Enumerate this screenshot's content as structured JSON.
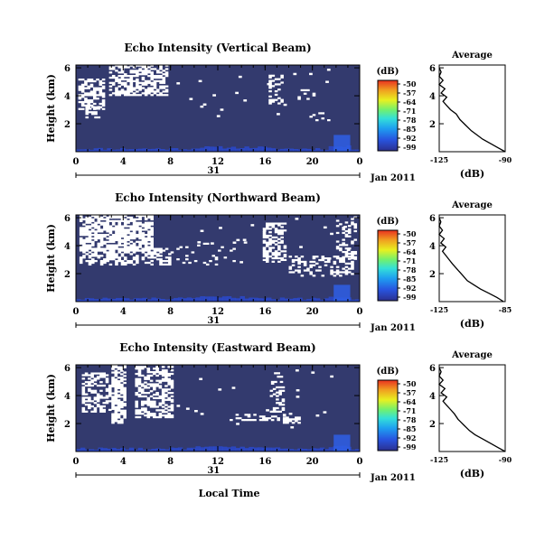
{
  "chart_data": [
    {
      "type": "heatmap",
      "title": "Echo Intensity (Vertical Beam)",
      "ylabel": "Height (km)",
      "x_ticks": [
        "0",
        "4",
        "8",
        "12",
        "16",
        "20",
        "0"
      ],
      "y_ticks": [
        "6",
        "4",
        "2"
      ],
      "date_day": "31",
      "date_label": "Jan 2011",
      "colorbar": {
        "unit": "(dB)",
        "ticks": [
          "-50",
          "-57",
          "-64",
          "-71",
          "-78",
          "-85",
          "-92",
          "-99"
        ]
      },
      "average": {
        "title": "Average",
        "xlabel": "(dB)",
        "x_ticks": [
          "-125",
          "-90"
        ],
        "y_ticks": [
          "6",
          "4",
          "2"
        ],
        "profile": [
          [
            -90,
            0
          ],
          [
            -94,
            0.3
          ],
          [
            -98,
            0.6
          ],
          [
            -102,
            0.9
          ],
          [
            -105,
            1.2
          ],
          [
            -108,
            1.5
          ],
          [
            -111,
            1.9
          ],
          [
            -114,
            2.3
          ],
          [
            -116,
            2.7
          ],
          [
            -119,
            3.0
          ],
          [
            -121,
            3.3
          ],
          [
            -123,
            3.6
          ],
          [
            -121,
            3.9
          ],
          [
            -124,
            4.2
          ],
          [
            -122,
            4.5
          ],
          [
            -125,
            4.8
          ],
          [
            -123,
            5.1
          ],
          [
            -125,
            5.4
          ],
          [
            -124,
            5.7
          ],
          [
            -125,
            6.0
          ]
        ]
      }
    },
    {
      "type": "heatmap",
      "title": "Echo Intensity (Northward Beam)",
      "ylabel": "Height (km)",
      "x_ticks": [
        "0",
        "4",
        "8",
        "12",
        "16",
        "20",
        "0"
      ],
      "y_ticks": [
        "6",
        "4",
        "2"
      ],
      "date_day": "31",
      "date_label": "Jan 2011",
      "colorbar": {
        "unit": "(dB)",
        "ticks": [
          "-50",
          "-57",
          "-64",
          "-71",
          "-78",
          "-85",
          "-92",
          "-99"
        ]
      },
      "average": {
        "title": "Average",
        "xlabel": "(dB)",
        "x_ticks": [
          "-125",
          "-85"
        ],
        "y_ticks": [
          "6",
          "4",
          "2"
        ],
        "profile": [
          [
            -86,
            0
          ],
          [
            -90,
            0.3
          ],
          [
            -95,
            0.6
          ],
          [
            -100,
            0.9
          ],
          [
            -104,
            1.2
          ],
          [
            -108,
            1.5
          ],
          [
            -111,
            1.9
          ],
          [
            -114,
            2.3
          ],
          [
            -117,
            2.7
          ],
          [
            -119,
            3.0
          ],
          [
            -121,
            3.3
          ],
          [
            -123,
            3.6
          ],
          [
            -121,
            3.9
          ],
          [
            -124,
            4.2
          ],
          [
            -122,
            4.5
          ],
          [
            -125,
            4.8
          ],
          [
            -123,
            5.1
          ],
          [
            -125,
            5.4
          ],
          [
            -124,
            5.7
          ],
          [
            -125,
            6.0
          ]
        ]
      }
    },
    {
      "type": "heatmap",
      "title": "Echo Intensity (Eastward Beam)",
      "ylabel": "Height (km)",
      "xlabel": "Local Time",
      "x_ticks": [
        "0",
        "4",
        "8",
        "12",
        "16",
        "20",
        "0"
      ],
      "y_ticks": [
        "6",
        "4",
        "2"
      ],
      "date_day": "31",
      "date_label": "Jan 2011",
      "colorbar": {
        "unit": "(dB)",
        "ticks": [
          "-50",
          "-57",
          "-64",
          "-71",
          "-78",
          "-85",
          "-92",
          "-99"
        ]
      },
      "average": {
        "title": "Average",
        "xlabel": "(dB)",
        "x_ticks": [
          "-125",
          "-90"
        ],
        "y_ticks": [
          "6",
          "4",
          "2"
        ],
        "profile": [
          [
            -90,
            0
          ],
          [
            -94,
            0.3
          ],
          [
            -98,
            0.6
          ],
          [
            -102,
            0.9
          ],
          [
            -106,
            1.2
          ],
          [
            -109,
            1.5
          ],
          [
            -112,
            1.9
          ],
          [
            -115,
            2.3
          ],
          [
            -117,
            2.7
          ],
          [
            -119,
            3.0
          ],
          [
            -121,
            3.3
          ],
          [
            -123,
            3.6
          ],
          [
            -121,
            3.9
          ],
          [
            -124,
            4.2
          ],
          [
            -122,
            4.5
          ],
          [
            -125,
            4.8
          ],
          [
            -123,
            5.1
          ],
          [
            -125,
            5.4
          ],
          [
            -124,
            5.7
          ],
          [
            -125,
            6.0
          ]
        ]
      }
    }
  ],
  "colors": {
    "background": "#333a6e",
    "bottom_band": "#2a4bd8",
    "missing": "#ffffff",
    "colorbar": [
      "#2b2f8f",
      "#2855e0",
      "#1ea0f0",
      "#34e0d8",
      "#70f070",
      "#e8f020",
      "#f0a020",
      "#e83020"
    ]
  }
}
